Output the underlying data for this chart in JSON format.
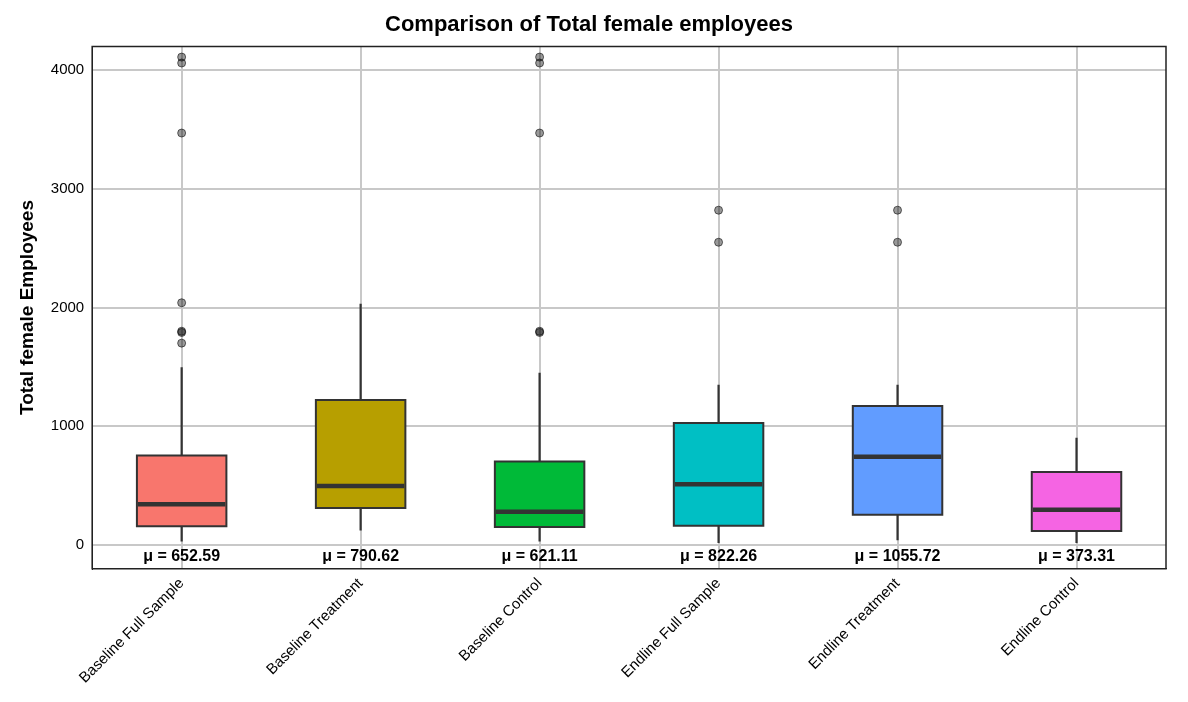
{
  "chart_data": {
    "type": "box",
    "title": "Comparison of Total female employees",
    "ylabel": "Total female Employees",
    "categories": [
      "Baseline Full Sample",
      "Baseline Treatment",
      "Baseline Control",
      "Endline Full Sample",
      "Endline Treatment",
      "Endline Control"
    ],
    "colors": [
      "#f8766d",
      "#b79f00",
      "#00ba38",
      "#00bfc4",
      "#619cff",
      "#f564e3"
    ],
    "boxes": [
      {
        "low": 29,
        "q1": 157,
        "median": 343,
        "q3": 753,
        "high": 1496,
        "outliers": [
          1700,
          1790,
          1800,
          2040,
          3470,
          4060,
          4110
        ]
      },
      {
        "low": 122,
        "q1": 310,
        "median": 497,
        "q3": 1220,
        "high": 2031
      },
      {
        "low": 29,
        "q1": 151,
        "median": 279,
        "q3": 702,
        "high": 1450,
        "outliers": [
          1790,
          1800,
          3470,
          4060,
          4110
        ]
      },
      {
        "low": 17,
        "q1": 161,
        "median": 510,
        "q3": 1028,
        "high": 1350,
        "outliers": [
          2550,
          2820
        ]
      },
      {
        "low": 40,
        "q1": 254,
        "median": 743,
        "q3": 1170,
        "high": 1350,
        "outliers": [
          2550,
          2820
        ]
      },
      {
        "low": 17,
        "q1": 118,
        "median": 296,
        "q3": 615,
        "high": 902
      }
    ],
    "ylim": [
      -200,
      4200
    ],
    "yticks": [
      0,
      1000,
      2000,
      3000,
      4000
    ],
    "grid": true,
    "annotations": [
      "μ = 652.59",
      "μ = 790.62",
      "μ = 621.11",
      "μ = 822.26",
      "μ = 1055.72",
      "μ = 373.31"
    ]
  }
}
